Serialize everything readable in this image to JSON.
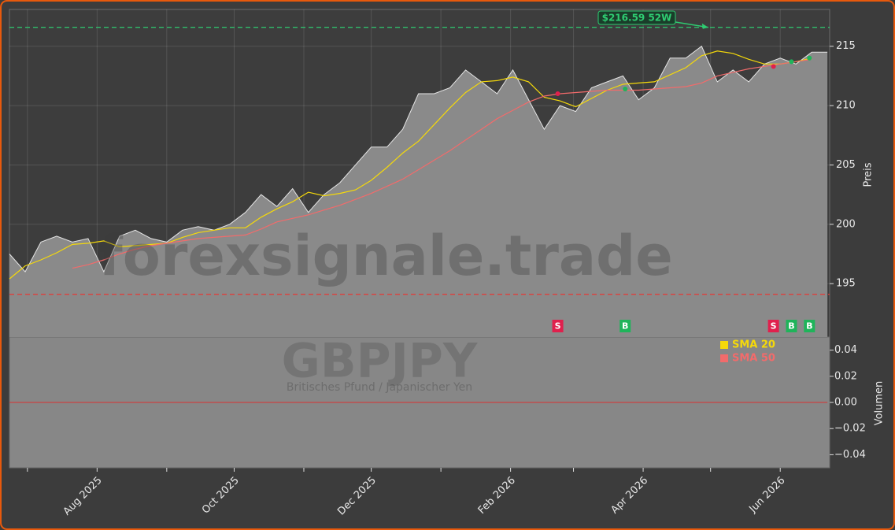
{
  "chart_data": {
    "type": "area",
    "watermark": "forexsignale.trade",
    "symbol": "GBPJPY",
    "symbol_name": "Britisches Pfund / Japanischer Yen",
    "x": [
      0,
      7,
      14,
      21,
      28,
      35,
      42,
      49,
      56,
      63,
      70,
      77,
      84,
      91,
      98,
      105,
      112,
      119,
      126,
      133,
      140,
      147,
      154,
      161,
      168,
      175,
      182,
      189,
      196,
      203,
      210,
      217,
      224,
      231,
      238,
      245,
      252,
      259,
      266,
      273,
      280,
      287,
      294,
      301,
      308,
      315,
      322,
      329,
      336,
      343,
      350,
      357,
      364
    ],
    "values": [
      197.5,
      196,
      198.5,
      199,
      198.5,
      198.8,
      196,
      199,
      199.5,
      198.8,
      198.5,
      199.5,
      199.8,
      199.5,
      200,
      201,
      202.5,
      201.5,
      203,
      201,
      202.5,
      203.5,
      205,
      206.5,
      206.5,
      208,
      211,
      211,
      211.5,
      213,
      212,
      211,
      213,
      210.5,
      208,
      210,
      209.5,
      211.5,
      212,
      212.5,
      210.5,
      211.5,
      214,
      214,
      215,
      212,
      213,
      212,
      213.5,
      214,
      213.5,
      214.5,
      214.5
    ],
    "color": "#8a8a8a",
    "series": [
      {
        "name": "SMA 20",
        "color": "#f5d90a",
        "values": [
          195.4,
          196.5,
          197,
          197.6,
          198.3,
          198.4,
          198.6,
          198.1,
          198.2,
          198.3,
          198.4,
          198.9,
          199.3,
          199.5,
          199.7,
          199.7,
          200.6,
          201.3,
          201.9,
          202.7,
          202.4,
          202.6,
          202.9,
          203.7,
          204.8,
          206,
          207,
          208.4,
          209.8,
          211.1,
          212,
          212.1,
          212.4,
          212,
          210.7,
          210.4,
          209.9,
          210.6,
          211.3,
          211.8,
          211.9,
          212,
          212.6,
          213.2,
          214.2,
          214.6,
          214.4,
          213.9,
          213.5,
          213.5,
          213.7,
          214,
          null
        ]
      },
      {
        "name": "SMA 50",
        "color": "#f26b6b",
        "values": [
          null,
          null,
          null,
          null,
          196.3,
          196.6,
          197,
          197.5,
          197.9,
          198.2,
          198.4,
          198.6,
          198.8,
          198.9,
          199,
          199.1,
          199.6,
          200.2,
          200.5,
          200.8,
          201.2,
          201.6,
          202.1,
          202.6,
          203.2,
          203.8,
          204.6,
          205.4,
          206.2,
          207.1,
          208,
          208.9,
          209.6,
          210.3,
          210.8,
          211,
          211.1,
          211.2,
          211.3,
          211.3,
          211.3,
          211.4,
          211.5,
          211.6,
          211.9,
          212.5,
          212.8,
          213.1,
          213.3,
          213.5,
          213.7,
          213.9,
          null
        ]
      }
    ],
    "xlim": [
      0,
      365
    ],
    "xticks": [
      {
        "value": 39,
        "label": "Aug 2025"
      },
      {
        "value": 100,
        "label": "Oct 2025"
      },
      {
        "value": 161,
        "label": "Dec 2025"
      },
      {
        "value": 223,
        "label": "Feb 2026"
      },
      {
        "value": 282,
        "label": "Apr 2026"
      },
      {
        "value": 343,
        "label": "Jun 2026"
      }
    ],
    "xticks_minor": [
      8,
      70,
      131,
      192,
      251,
      312
    ],
    "ylim": [
      190.5,
      218.1
    ],
    "yticks": [
      195,
      200,
      205,
      210,
      215
    ],
    "ylabel": "Preis",
    "grid": true,
    "hlines": [
      {
        "value": 216.59,
        "color": "#2ecc71"
      },
      {
        "value": 194.1,
        "color": "#e53935"
      }
    ],
    "annotation": {
      "text": "$216.59 52W",
      "x": 311,
      "y": 216.59
    },
    "signals": [
      {
        "label": "S",
        "x": 244,
        "y": 211,
        "color": "#e0204d"
      },
      {
        "label": "B",
        "x": 274,
        "y": 211.4,
        "color": "#1fb45a"
      },
      {
        "label": "S",
        "x": 340,
        "y": 213.3,
        "color": "#e0204d"
      },
      {
        "label": "B",
        "x": 348,
        "y": 213.7,
        "color": "#1fb45a"
      },
      {
        "label": "B",
        "x": 356,
        "y": 214,
        "color": "#1fb45a"
      }
    ],
    "volume": {
      "ylabel": "Volumen",
      "ylim": [
        -0.05,
        0.05
      ],
      "yticks": [
        0.04,
        0.02,
        {
          "value": 0,
          "label": "0.00"
        },
        {
          "value": -0.02,
          "label": "−0.02"
        },
        {
          "value": -0.04,
          "label": "−0.04"
        }
      ],
      "color": "#d83030",
      "values": [
        0,
        0,
        0,
        0,
        0,
        0,
        0,
        0,
        0,
        0,
        0,
        0,
        0,
        0,
        0,
        0,
        0,
        0,
        0,
        0,
        0,
        0,
        0,
        0,
        0,
        0,
        0,
        0,
        0,
        0,
        0,
        0,
        0,
        0,
        0,
        0,
        0,
        0,
        0,
        0,
        0,
        0,
        0,
        0,
        0,
        0,
        0,
        0,
        0,
        0,
        0,
        0,
        0
      ]
    }
  }
}
